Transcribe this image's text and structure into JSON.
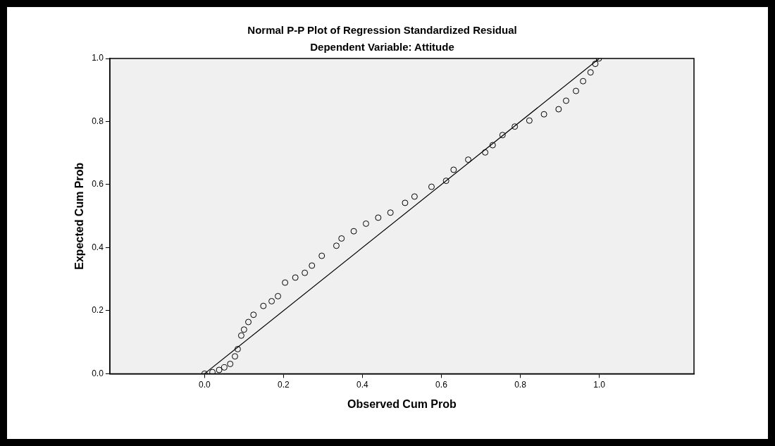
{
  "chart_data": {
    "type": "scatter",
    "title": "Normal P-P Plot of Regression Standardized Residual",
    "subtitle": "Dependent Variable: Attitude",
    "xlabel": "Observed Cum Prob",
    "ylabel": "Expected Cum Prob",
    "xlim": [
      -0.24,
      1.24
    ],
    "ylim": [
      0,
      1
    ],
    "xticks": [
      {
        "value": 0,
        "label": "0.0"
      },
      0.2,
      0.4,
      0.6,
      0.8,
      {
        "value": 1,
        "label": "1.0"
      }
    ],
    "yticks": [
      {
        "value": 0,
        "label": "0.0"
      },
      0.2,
      0.4,
      0.6,
      0.8,
      {
        "value": 1,
        "label": "1.0"
      }
    ],
    "grid": false,
    "legend": false,
    "series": [
      {
        "type": "scatter",
        "marker": "circle",
        "color": "#000000",
        "x": [
          0,
          0.02,
          0.037,
          0.05,
          0.065,
          0.077,
          0.084,
          0.093,
          0.1,
          0.111,
          0.124,
          0.149,
          0.17,
          0.186,
          0.204,
          0.23,
          0.254,
          0.272,
          0.297,
          0.334,
          0.347,
          0.378,
          0.409,
          0.44,
          0.471,
          0.508,
          0.532,
          0.575,
          0.612,
          0.631,
          0.668,
          0.711,
          0.73,
          0.755,
          0.786,
          0.823,
          0.86,
          0.897,
          0.916,
          0.941,
          0.959,
          0.978,
          0.99,
          0.999
        ],
        "values": [
          0,
          0.005,
          0.012,
          0.02,
          0.031,
          0.055,
          0.078,
          0.121,
          0.14,
          0.164,
          0.187,
          0.215,
          0.23,
          0.246,
          0.289,
          0.305,
          0.32,
          0.343,
          0.374,
          0.406,
          0.429,
          0.452,
          0.476,
          0.495,
          0.511,
          0.542,
          0.562,
          0.593,
          0.612,
          0.647,
          0.679,
          0.702,
          0.725,
          0.757,
          0.784,
          0.803,
          0.823,
          0.839,
          0.866,
          0.897,
          0.928,
          0.956,
          0.983,
          1.0
        ]
      },
      {
        "type": "line",
        "marker": "none",
        "color": "#000000",
        "x": [
          0,
          1
        ],
        "values": [
          0,
          1
        ]
      }
    ]
  }
}
